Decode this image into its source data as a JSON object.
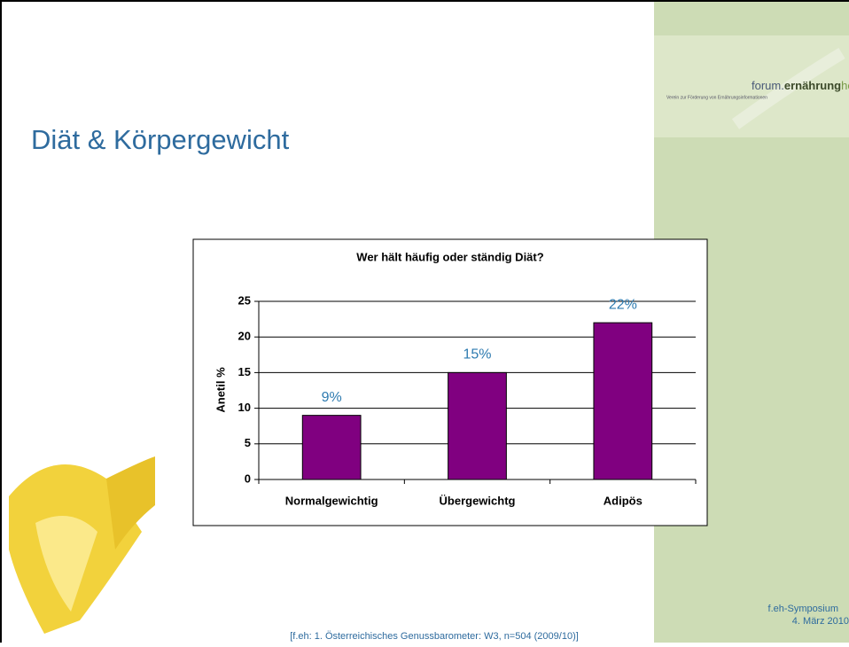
{
  "title": "Diät & Körpergewicht",
  "logo": {
    "forum": "forum.",
    "ernaehrung": "ernährung",
    "heute": "heute",
    "tagline": "Verein zur Förderung von Ernährungsinformationen"
  },
  "footer": {
    "event": "f.eh-Symposium",
    "date": "4. März 2010"
  },
  "source": "[f.eh: 1. Österreichisches Genussbarometer: W3, n=504 (2009/10)]",
  "chart_data": {
    "type": "bar",
    "title": "Wer hält häufig oder ständig Diät?",
    "y_label": "Anetil %",
    "categories": [
      "Normalgewichtig",
      "Übergewichtg",
      "Adipös"
    ],
    "values": [
      9,
      15,
      22
    ],
    "value_labels": [
      "9%",
      "15%",
      "22%"
    ],
    "color": "#800080",
    "ylim": [
      0,
      25
    ],
    "yticks": [
      0,
      5,
      10,
      15,
      20,
      25
    ],
    "grid": true
  }
}
